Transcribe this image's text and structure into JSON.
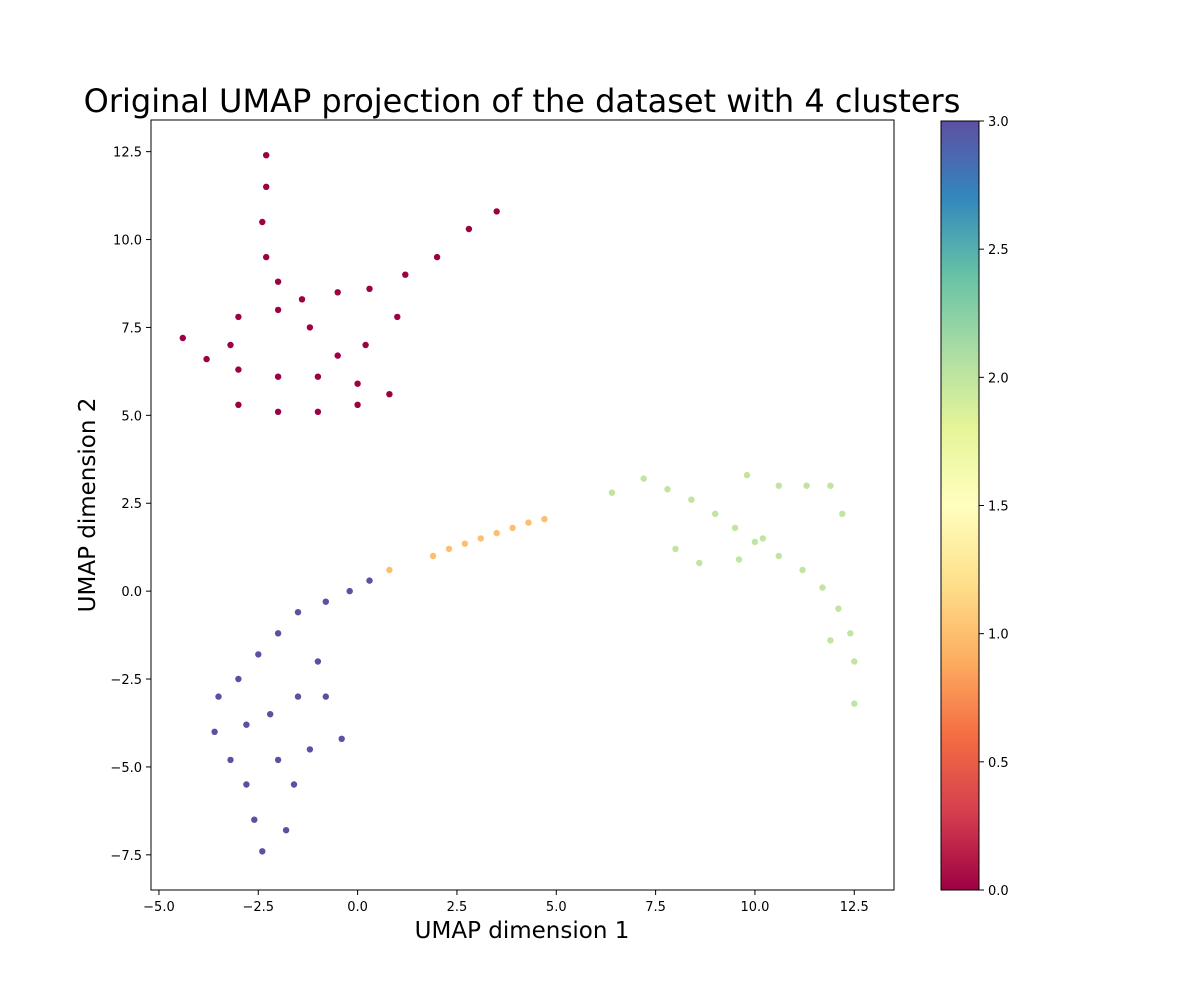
{
  "chart_data": {
    "type": "scatter",
    "title": "Original UMAP projection of the dataset with 4 clusters",
    "xlabel": "UMAP dimension 1",
    "ylabel": "UMAP dimension 2",
    "xlim": [
      -5.2,
      13.5
    ],
    "ylim": [
      -8.5,
      13.4
    ],
    "xticks": [
      -5.0,
      -2.5,
      0.0,
      2.5,
      5.0,
      7.5,
      10.0,
      12.5
    ],
    "xtick_labels": [
      "−5.0",
      "−2.5",
      "0.0",
      "2.5",
      "5.0",
      "7.5",
      "10.0",
      "12.5"
    ],
    "yticks": [
      -7.5,
      -5.0,
      -2.5,
      0.0,
      2.5,
      5.0,
      7.5,
      10.0,
      12.5
    ],
    "ytick_labels": [
      "−7.5",
      "−5.0",
      "−2.5",
      "0.0",
      "2.5",
      "5.0",
      "7.5",
      "10.0",
      "12.5"
    ],
    "grid": false,
    "colormap": "Spectral",
    "colorbar": {
      "range": [
        0.0,
        3.0
      ],
      "ticks": [
        0.0,
        0.5,
        1.0,
        1.5,
        2.0,
        2.5,
        3.0
      ],
      "tick_labels": [
        "0.0",
        "0.5",
        "1.0",
        "1.5",
        "2.0",
        "2.5",
        "3.0"
      ],
      "stops": [
        "#9e0142",
        "#d53e4f",
        "#f46d43",
        "#fdae61",
        "#fee08b",
        "#ffffbf",
        "#e6f598",
        "#abdda4",
        "#66c2a5",
        "#3288bd",
        "#5e4fa2"
      ]
    },
    "series": [
      {
        "cluster": 0,
        "color": "#9e0142",
        "points": [
          [
            -2.3,
            12.4
          ],
          [
            -2.3,
            11.5
          ],
          [
            -2.4,
            10.5
          ],
          [
            -2.3,
            9.5
          ],
          [
            -2.0,
            8.8
          ],
          [
            -1.4,
            8.3
          ],
          [
            -0.5,
            8.5
          ],
          [
            0.3,
            8.6
          ],
          [
            1.2,
            9.0
          ],
          [
            2.0,
            9.5
          ],
          [
            2.8,
            10.3
          ],
          [
            3.5,
            10.8
          ],
          [
            -4.4,
            7.2
          ],
          [
            -3.8,
            6.6
          ],
          [
            -3.0,
            6.3
          ],
          [
            -2.0,
            6.1
          ],
          [
            -1.0,
            6.1
          ],
          [
            0.0,
            5.9
          ],
          [
            0.8,
            5.6
          ],
          [
            -3.0,
            5.3
          ],
          [
            -2.0,
            5.1
          ],
          [
            -1.0,
            5.1
          ],
          [
            0.0,
            5.3
          ],
          [
            -3.0,
            7.8
          ],
          [
            -2.0,
            8.0
          ],
          [
            -1.2,
            7.5
          ],
          [
            0.2,
            7.0
          ],
          [
            1.0,
            7.8
          ],
          [
            -0.5,
            6.7
          ],
          [
            -3.2,
            7.0
          ]
        ]
      },
      {
        "cluster": 1,
        "color": "#fdbf6f",
        "points": [
          [
            0.8,
            0.6
          ],
          [
            1.9,
            1.0
          ],
          [
            2.3,
            1.2
          ],
          [
            2.7,
            1.35
          ],
          [
            3.1,
            1.5
          ],
          [
            3.5,
            1.65
          ],
          [
            3.9,
            1.8
          ],
          [
            4.3,
            1.95
          ],
          [
            4.7,
            2.05
          ]
        ]
      },
      {
        "cluster": 2,
        "color": "#bfe5a0",
        "points": [
          [
            6.4,
            2.8
          ],
          [
            7.2,
            3.2
          ],
          [
            7.8,
            2.9
          ],
          [
            8.4,
            2.6
          ],
          [
            9.0,
            2.2
          ],
          [
            9.5,
            1.8
          ],
          [
            10.0,
            1.4
          ],
          [
            10.6,
            1.0
          ],
          [
            11.2,
            0.6
          ],
          [
            11.7,
            0.1
          ],
          [
            12.1,
            -0.5
          ],
          [
            12.4,
            -1.2
          ],
          [
            12.5,
            -2.0
          ],
          [
            12.5,
            -3.2
          ],
          [
            9.8,
            3.3
          ],
          [
            10.6,
            3.0
          ],
          [
            11.3,
            3.0
          ],
          [
            11.9,
            3.0
          ],
          [
            12.2,
            2.2
          ],
          [
            8.0,
            1.2
          ],
          [
            8.6,
            0.8
          ],
          [
            9.6,
            0.9
          ],
          [
            10.2,
            1.5
          ],
          [
            11.9,
            -1.4
          ]
        ]
      },
      {
        "cluster": 3,
        "color": "#5e4fa2",
        "points": [
          [
            0.3,
            0.3
          ],
          [
            -0.2,
            0.0
          ],
          [
            -0.8,
            -0.3
          ],
          [
            -1.5,
            -0.6
          ],
          [
            -2.0,
            -1.2
          ],
          [
            -2.5,
            -1.8
          ],
          [
            -3.0,
            -2.5
          ],
          [
            -3.5,
            -3.0
          ],
          [
            -3.6,
            -4.0
          ],
          [
            -3.2,
            -4.8
          ],
          [
            -2.8,
            -5.5
          ],
          [
            -2.6,
            -6.5
          ],
          [
            -2.4,
            -7.4
          ],
          [
            -1.8,
            -6.8
          ],
          [
            -1.6,
            -5.5
          ],
          [
            -1.2,
            -4.5
          ],
          [
            -0.4,
            -4.2
          ],
          [
            -0.8,
            -3.0
          ],
          [
            -1.0,
            -2.0
          ],
          [
            -2.2,
            -3.5
          ],
          [
            -2.0,
            -4.8
          ],
          [
            -2.8,
            -3.8
          ],
          [
            -1.5,
            -3.0
          ]
        ]
      }
    ]
  }
}
